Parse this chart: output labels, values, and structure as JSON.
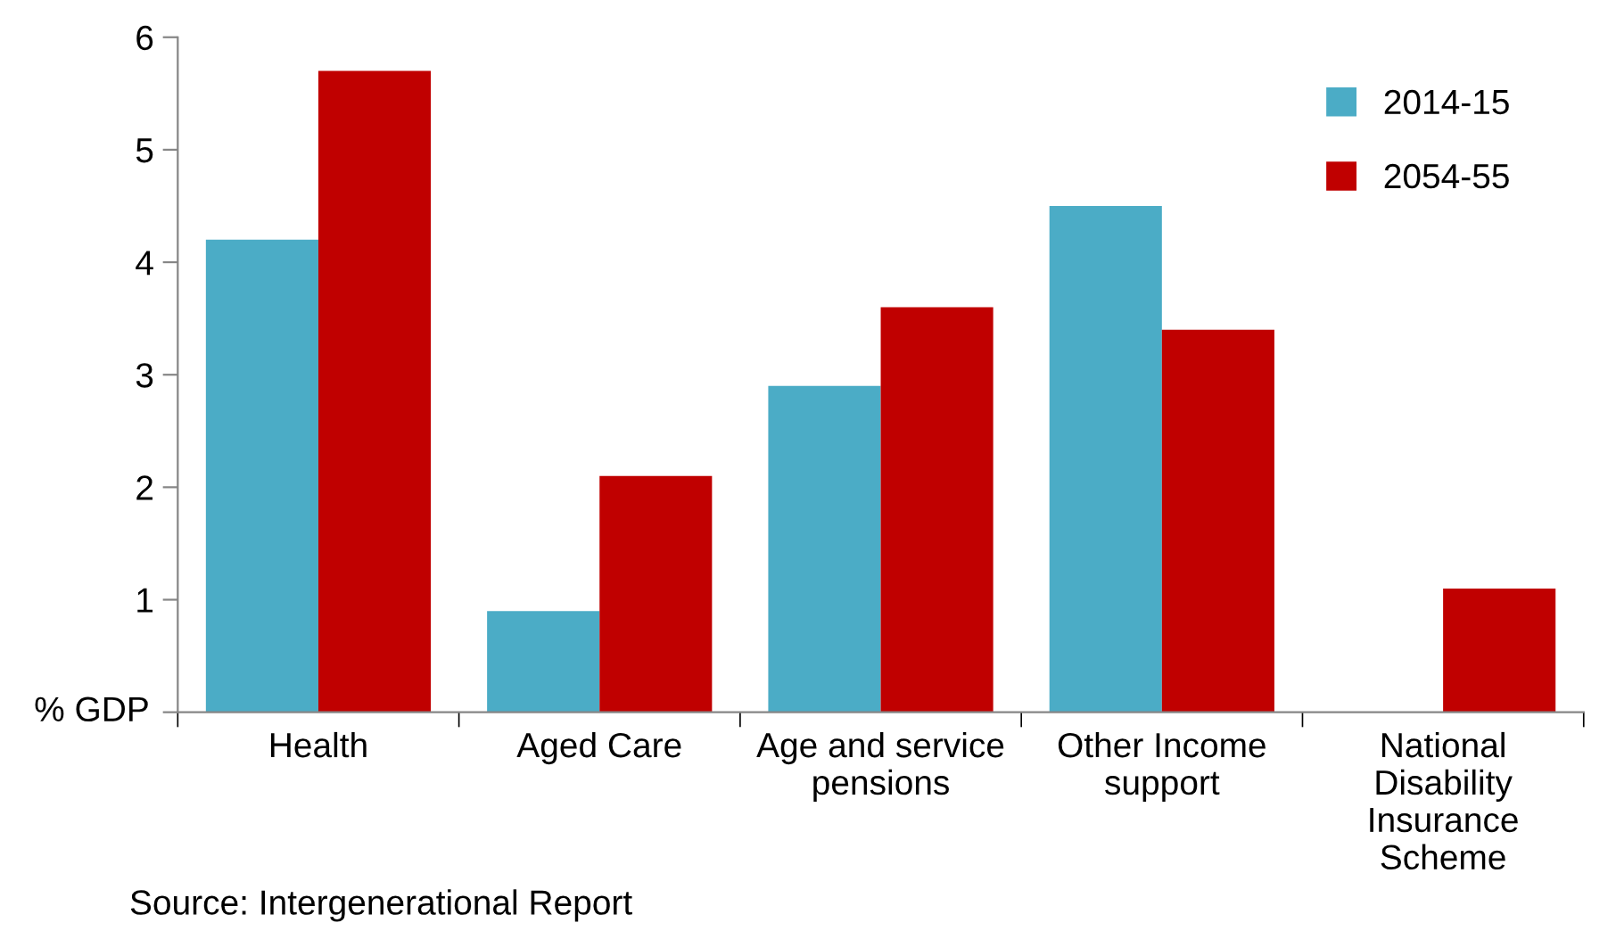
{
  "chart_data": {
    "type": "bar",
    "categories": [
      "Health",
      "Aged Care",
      "Age and service pensions",
      "Other Income support",
      "National Disability Insurance Scheme"
    ],
    "series": [
      {
        "name": "2014-15",
        "color": "#4bacc6",
        "values": [
          4.2,
          0.9,
          2.9,
          4.5,
          null
        ]
      },
      {
        "name": "2054-55",
        "color": "#c00000",
        "values": [
          5.7,
          2.1,
          3.6,
          3.4,
          1.1
        ]
      }
    ],
    "ylabel": "% GDP",
    "ylim": [
      0,
      6
    ],
    "yticks": [
      {
        "value": 0,
        "label": null
      },
      1,
      2,
      3,
      4,
      5,
      6
    ],
    "grid": false,
    "legend": "top right",
    "annotations": [
      "Source: Intergenerational Report"
    ]
  }
}
